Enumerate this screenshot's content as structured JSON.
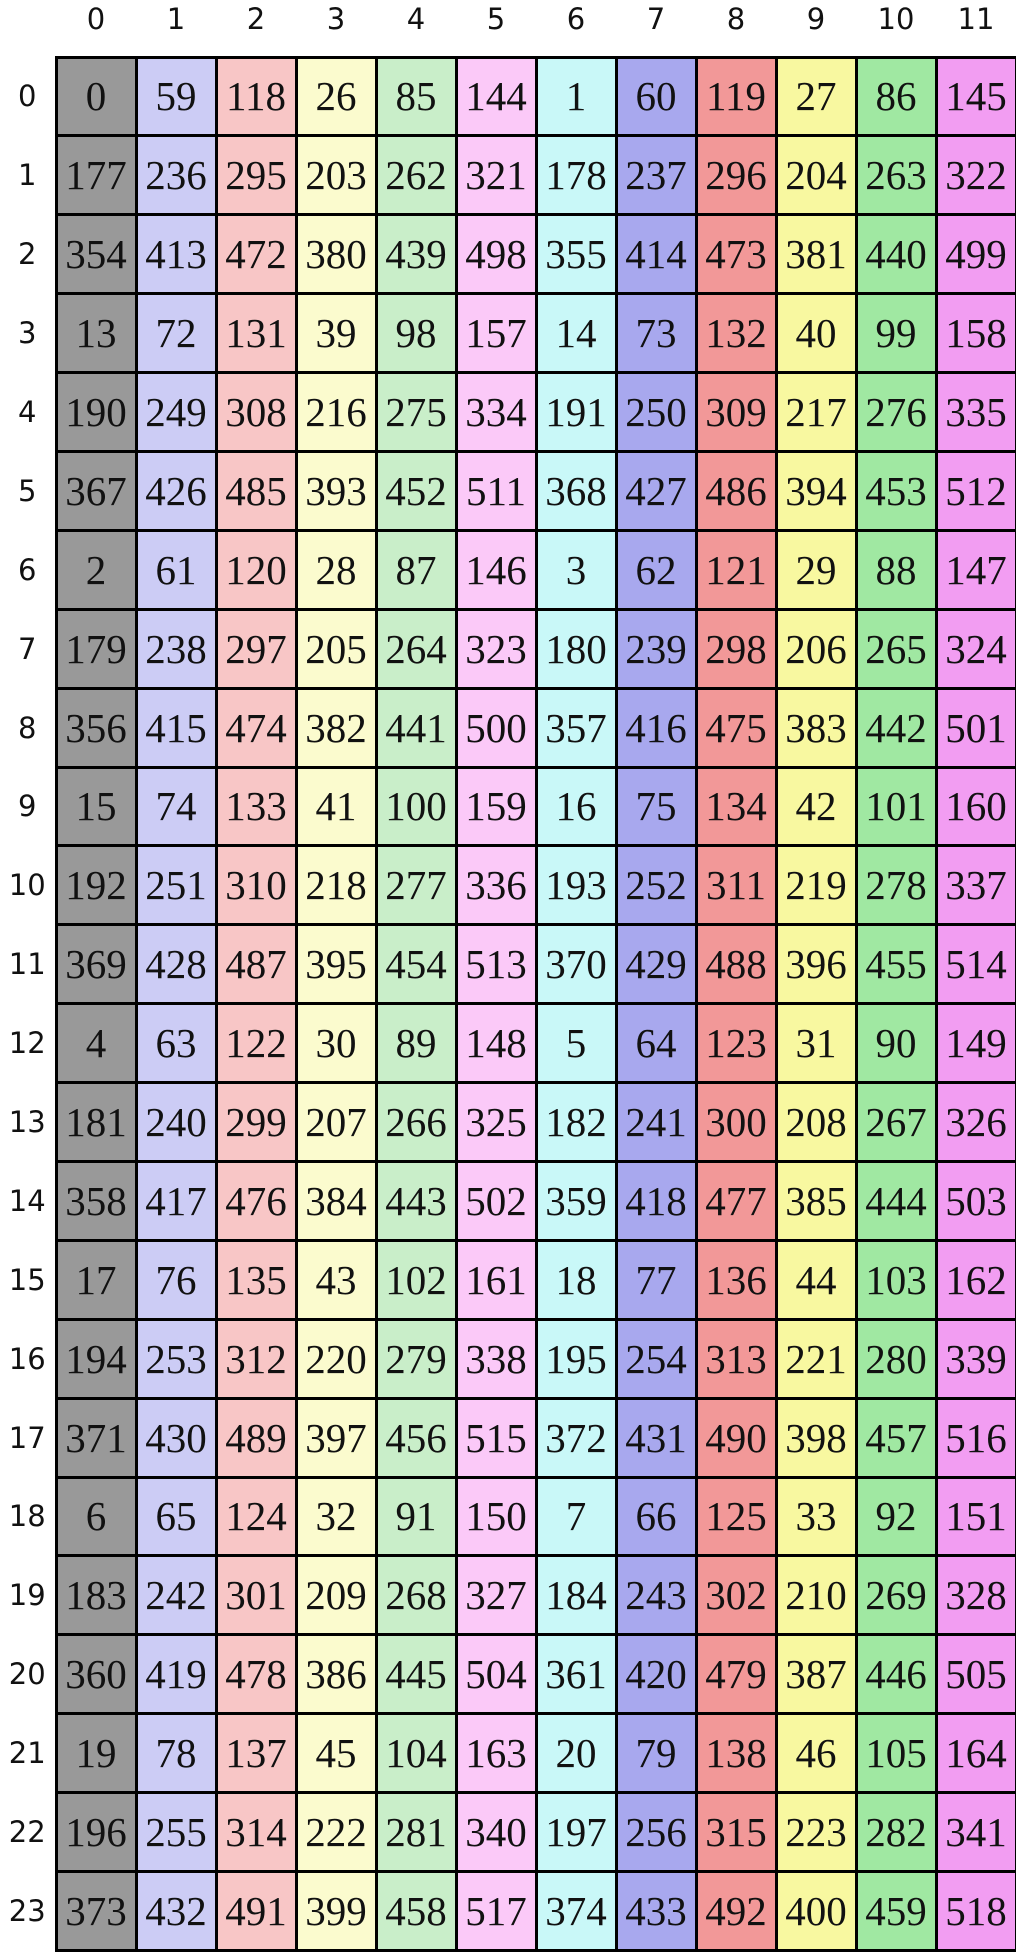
{
  "colors": {
    "background": "#ffffff",
    "border": "#000000",
    "cell_text": "#111111",
    "header_text": "#111111"
  },
  "chart_data": {
    "type": "table",
    "title": "",
    "layout": "indexed grid, 24 rows x 12 columns, per-column background colors, black cell borders",
    "column_headers": [
      "0",
      "1",
      "2",
      "3",
      "4",
      "5",
      "6",
      "7",
      "8",
      "9",
      "10",
      "11"
    ],
    "row_headers": [
      "0",
      "1",
      "2",
      "3",
      "4",
      "5",
      "6",
      "7",
      "8",
      "9",
      "10",
      "11",
      "12",
      "13",
      "14",
      "15",
      "16",
      "17",
      "18",
      "19",
      "20",
      "21",
      "22",
      "23"
    ],
    "column_colors": [
      "#999999",
      "#ccccf5",
      "#f8c6c6",
      "#fbfbce",
      "#c9eec9",
      "#fbc9f8",
      "#c9f8f8",
      "#a8a8ee",
      "#f29898",
      "#f8f8a0",
      "#a0e8a2",
      "#f29df2"
    ],
    "rows": [
      [
        0,
        59,
        118,
        26,
        85,
        144,
        1,
        60,
        119,
        27,
        86,
        145
      ],
      [
        177,
        236,
        295,
        203,
        262,
        321,
        178,
        237,
        296,
        204,
        263,
        322
      ],
      [
        354,
        413,
        472,
        380,
        439,
        498,
        355,
        414,
        473,
        381,
        440,
        499
      ],
      [
        13,
        72,
        131,
        39,
        98,
        157,
        14,
        73,
        132,
        40,
        99,
        158
      ],
      [
        190,
        249,
        308,
        216,
        275,
        334,
        191,
        250,
        309,
        217,
        276,
        335
      ],
      [
        367,
        426,
        485,
        393,
        452,
        511,
        368,
        427,
        486,
        394,
        453,
        512
      ],
      [
        2,
        61,
        120,
        28,
        87,
        146,
        3,
        62,
        121,
        29,
        88,
        147
      ],
      [
        179,
        238,
        297,
        205,
        264,
        323,
        180,
        239,
        298,
        206,
        265,
        324
      ],
      [
        356,
        415,
        474,
        382,
        441,
        500,
        357,
        416,
        475,
        383,
        442,
        501
      ],
      [
        15,
        74,
        133,
        41,
        100,
        159,
        16,
        75,
        134,
        42,
        101,
        160
      ],
      [
        192,
        251,
        310,
        218,
        277,
        336,
        193,
        252,
        311,
        219,
        278,
        337
      ],
      [
        369,
        428,
        487,
        395,
        454,
        513,
        370,
        429,
        488,
        396,
        455,
        514
      ],
      [
        4,
        63,
        122,
        30,
        89,
        148,
        5,
        64,
        123,
        31,
        90,
        149
      ],
      [
        181,
        240,
        299,
        207,
        266,
        325,
        182,
        241,
        300,
        208,
        267,
        326
      ],
      [
        358,
        417,
        476,
        384,
        443,
        502,
        359,
        418,
        477,
        385,
        444,
        503
      ],
      [
        17,
        76,
        135,
        43,
        102,
        161,
        18,
        77,
        136,
        44,
        103,
        162
      ],
      [
        194,
        253,
        312,
        220,
        279,
        338,
        195,
        254,
        313,
        221,
        280,
        339
      ],
      [
        371,
        430,
        489,
        397,
        456,
        515,
        372,
        431,
        490,
        398,
        457,
        516
      ],
      [
        6,
        65,
        124,
        32,
        91,
        150,
        7,
        66,
        125,
        33,
        92,
        151
      ],
      [
        183,
        242,
        301,
        209,
        268,
        327,
        184,
        243,
        302,
        210,
        269,
        328
      ],
      [
        360,
        419,
        478,
        386,
        445,
        504,
        361,
        420,
        479,
        387,
        446,
        505
      ],
      [
        19,
        78,
        137,
        45,
        104,
        163,
        20,
        79,
        138,
        46,
        105,
        164
      ],
      [
        196,
        255,
        314,
        222,
        281,
        340,
        197,
        256,
        315,
        223,
        282,
        341
      ],
      [
        373,
        432,
        491,
        399,
        458,
        517,
        374,
        433,
        492,
        400,
        459,
        518
      ]
    ]
  }
}
